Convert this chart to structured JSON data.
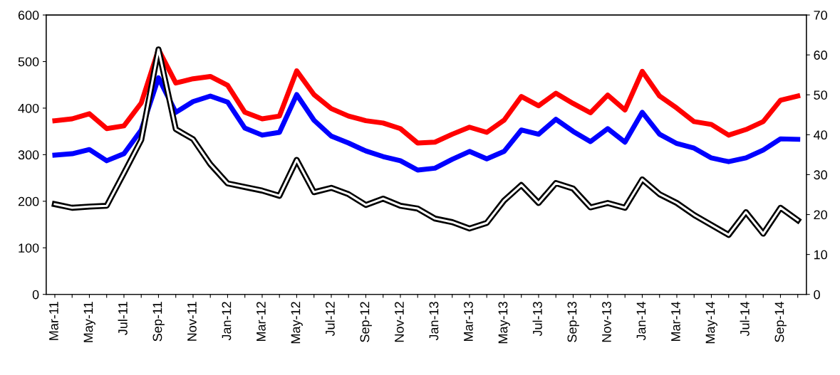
{
  "chart_data": {
    "type": "line",
    "categories": [
      "Mar-11",
      null,
      "May-11",
      null,
      "Jul-11",
      null,
      "Sep-11",
      null,
      "Nov-11",
      null,
      "Jan-12",
      null,
      "Mar-12",
      null,
      "May-12",
      null,
      "Jul-12",
      null,
      "Sep-12",
      null,
      "Nov-12",
      null,
      "Jan-13",
      null,
      "Mar-13",
      null,
      "May-13",
      null,
      "Jul-13",
      null,
      "Sep-13",
      null,
      "Nov-13",
      null,
      "Jan-14",
      null,
      "Mar-14",
      null,
      "May-14",
      null,
      "Jul-14",
      null,
      "Sep-14",
      null
    ],
    "series": [
      {
        "color": "#0000ff",
        "values": [
          299,
          302,
          311,
          287,
          302,
          353,
          465,
          391,
          414,
          426,
          413,
          357,
          342,
          348,
          429,
          374,
          340,
          325,
          308,
          296,
          287,
          267,
          271,
          290,
          307,
          291,
          307,
          353,
          344,
          376,
          350,
          328,
          356,
          327,
          391,
          344,
          324,
          314,
          293,
          285,
          293,
          310,
          334,
          333
        ]
      },
      {
        "color": "#ff0000",
        "values": [
          373,
          377,
          388,
          356,
          362,
          411,
          526,
          454,
          463,
          468,
          449,
          391,
          377,
          383,
          480,
          429,
          399,
          383,
          373,
          368,
          356,
          325,
          327,
          344,
          359,
          348,
          374,
          425,
          405,
          432,
          410,
          390,
          428,
          396,
          479,
          426,
          400,
          371,
          365,
          342,
          354,
          371,
          417,
          426
        ]
      },
      {
        "color": "#000000",
        "axis": "y2",
        "values": [
          22.6,
          21.7,
          22.0,
          22.2,
          30.4,
          38.7,
          61.4,
          41.4,
          38.9,
          32.6,
          27.8,
          26.9,
          26.0,
          24.7,
          33.7,
          25.6,
          26.7,
          25.1,
          22.4,
          24.0,
          22.2,
          21.5,
          19.0,
          18.1,
          16.5,
          17.9,
          23.5,
          27.4,
          22.9,
          27.9,
          26.5,
          21.8,
          22.9,
          21.7,
          28.8,
          25.1,
          22.9,
          19.9,
          17.4,
          14.9,
          20.6,
          15.2,
          21.7,
          18.6
        ]
      }
    ],
    "ylim": [
      0,
      600
    ],
    "yticks": [
      0,
      100,
      200,
      300,
      400,
      500,
      600
    ],
    "y2lim": [
      0,
      70
    ],
    "y2ticks": [
      0,
      10,
      20,
      30,
      40,
      50,
      60,
      70
    ],
    "grid": false,
    "marker": "none",
    "line_style": "solid"
  }
}
